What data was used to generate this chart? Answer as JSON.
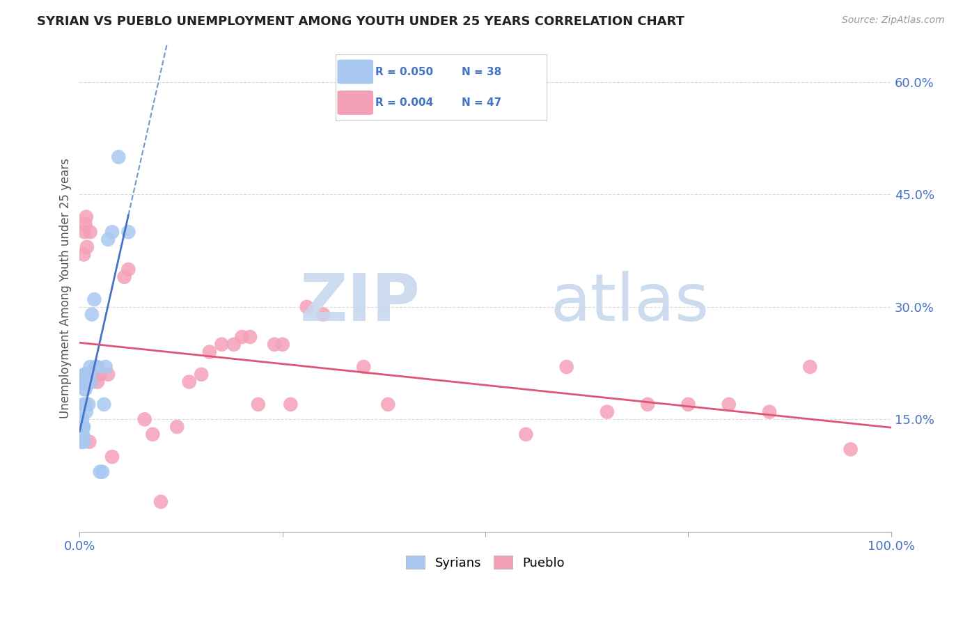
{
  "title": "SYRIAN VS PUEBLO UNEMPLOYMENT AMONG YOUTH UNDER 25 YEARS CORRELATION CHART",
  "source": "Source: ZipAtlas.com",
  "ylabel": "Unemployment Among Youth under 25 years",
  "xlim": [
    0,
    1.0
  ],
  "ylim": [
    0,
    0.65
  ],
  "ytick_positions": [
    0.15,
    0.3,
    0.45,
    0.6
  ],
  "ytick_labels": [
    "15.0%",
    "30.0%",
    "45.0%",
    "60.0%"
  ],
  "background_color": "#ffffff",
  "grid_color": "#d0d0d0",
  "legend_R_syrian": "0.050",
  "legend_N_syrian": "38",
  "legend_R_pueblo": "0.004",
  "legend_N_pueblo": "47",
  "syrian_color": "#a8c8f0",
  "pueblo_color": "#f4a0b8",
  "trend_syrian_color": "#4472c4",
  "trend_pueblo_color": "#e05575",
  "syrian_x": [
    0.002,
    0.002,
    0.002,
    0.003,
    0.003,
    0.004,
    0.004,
    0.004,
    0.005,
    0.005,
    0.005,
    0.005,
    0.006,
    0.006,
    0.007,
    0.007,
    0.007,
    0.008,
    0.008,
    0.008,
    0.009,
    0.01,
    0.011,
    0.012,
    0.013,
    0.014,
    0.015,
    0.018,
    0.02,
    0.022,
    0.025,
    0.028,
    0.03,
    0.032,
    0.035,
    0.04,
    0.048,
    0.06
  ],
  "syrian_y": [
    0.12,
    0.13,
    0.14,
    0.12,
    0.15,
    0.12,
    0.13,
    0.14,
    0.12,
    0.14,
    0.17,
    0.2,
    0.19,
    0.21,
    0.17,
    0.19,
    0.21,
    0.16,
    0.2,
    0.21,
    0.2,
    0.2,
    0.17,
    0.21,
    0.22,
    0.2,
    0.29,
    0.31,
    0.22,
    0.22,
    0.08,
    0.08,
    0.17,
    0.22,
    0.39,
    0.4,
    0.5,
    0.4
  ],
  "pueblo_x": [
    0.003,
    0.005,
    0.006,
    0.007,
    0.008,
    0.009,
    0.01,
    0.011,
    0.012,
    0.013,
    0.015,
    0.016,
    0.02,
    0.022,
    0.025,
    0.035,
    0.04,
    0.055,
    0.06,
    0.08,
    0.09,
    0.1,
    0.12,
    0.135,
    0.15,
    0.16,
    0.175,
    0.19,
    0.2,
    0.21,
    0.22,
    0.24,
    0.25,
    0.26,
    0.28,
    0.3,
    0.35,
    0.38,
    0.55,
    0.6,
    0.65,
    0.7,
    0.75,
    0.8,
    0.85,
    0.9,
    0.95
  ],
  "pueblo_y": [
    0.2,
    0.37,
    0.4,
    0.41,
    0.42,
    0.38,
    0.21,
    0.2,
    0.12,
    0.4,
    0.2,
    0.21,
    0.22,
    0.2,
    0.21,
    0.21,
    0.1,
    0.34,
    0.35,
    0.15,
    0.13,
    0.04,
    0.14,
    0.2,
    0.21,
    0.24,
    0.25,
    0.25,
    0.26,
    0.26,
    0.17,
    0.25,
    0.25,
    0.17,
    0.3,
    0.29,
    0.22,
    0.17,
    0.13,
    0.22,
    0.16,
    0.17,
    0.17,
    0.17,
    0.16,
    0.22,
    0.11
  ]
}
